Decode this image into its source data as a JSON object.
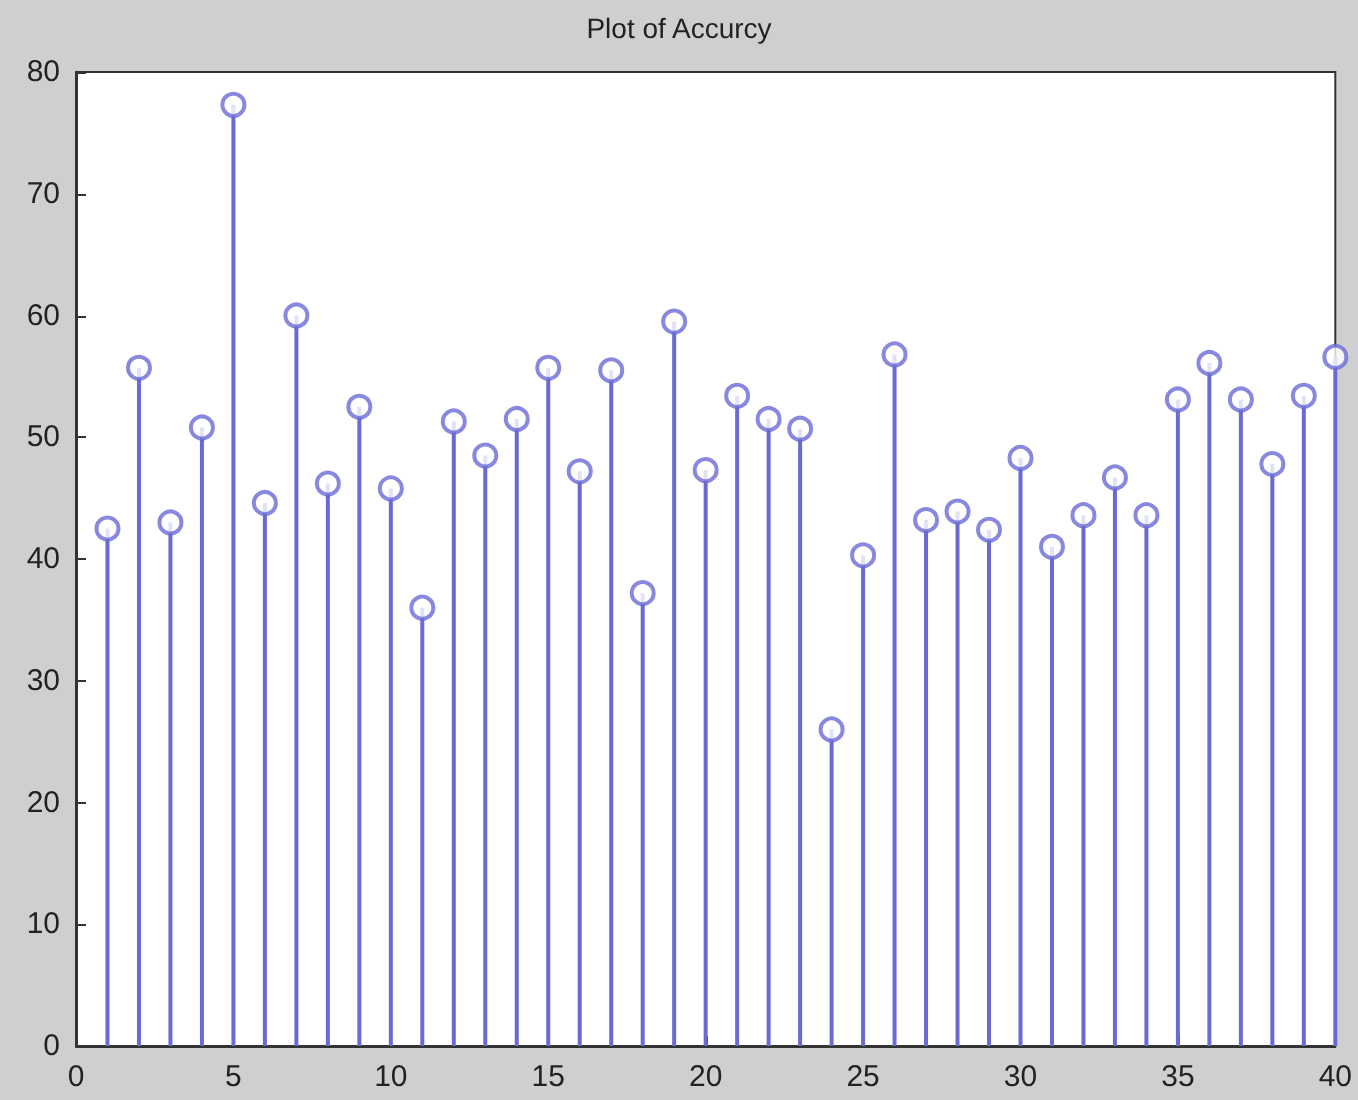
{
  "chart_data": {
    "type": "lollipop",
    "title": "Plot of Accurcy",
    "x": [
      1,
      2,
      3,
      4,
      5,
      6,
      7,
      8,
      9,
      10,
      11,
      12,
      13,
      14,
      15,
      16,
      17,
      18,
      19,
      20,
      21,
      22,
      23,
      24,
      25,
      26,
      27,
      28,
      29,
      30,
      31,
      32,
      33,
      34,
      35,
      36,
      37,
      38,
      39,
      40
    ],
    "values": [
      42.5,
      55.7,
      43,
      50.8,
      77.3,
      44.6,
      60,
      46.2,
      52.5,
      45.8,
      36,
      51.3,
      48.5,
      51.5,
      55.7,
      47.2,
      55.5,
      37.2,
      59.5,
      47.3,
      53.4,
      51.5,
      50.7,
      26,
      40.3,
      56.8,
      43.2,
      43.9,
      42.4,
      48.3,
      41,
      43.6,
      46.7,
      43.6,
      53.1,
      56.1,
      53.1,
      47.8,
      53.4,
      56.6
    ],
    "color": "#6a6ad6",
    "marker": "circle",
    "xlim": [
      0,
      40
    ],
    "xticks": [
      0,
      5,
      10,
      15,
      20,
      25,
      30,
      35,
      40
    ],
    "ylim": [
      0,
      80
    ],
    "yticks": [
      0,
      10,
      20,
      30,
      40,
      50,
      60,
      70,
      80
    ],
    "grid": false
  }
}
